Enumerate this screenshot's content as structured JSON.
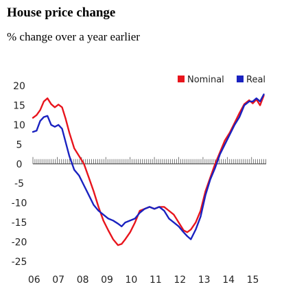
{
  "header": {
    "title": "House price change",
    "subtitle": "% change over a year earlier"
  },
  "chart_data": {
    "type": "line",
    "title": "House price change",
    "subtitle": "% change over a year earlier",
    "xlabel": "",
    "ylabel": "",
    "ylim": [
      -25,
      20
    ],
    "xlim": [
      2006,
      2015.6
    ],
    "yticks": [
      20,
      15,
      10,
      5,
      0,
      -5,
      -10,
      -15,
      -20,
      -25
    ],
    "ytick_labels": [
      "20",
      "15",
      "10",
      "5",
      "0",
      "-5",
      "-10",
      "-15",
      "-20",
      "-25"
    ],
    "xticks": [
      2006,
      2007,
      2008,
      2009,
      2010,
      2011,
      2012,
      2013,
      2014,
      2015
    ],
    "xtick_labels": [
      "06",
      "07",
      "08",
      "09",
      "10",
      "11",
      "12",
      "13",
      "14",
      "15"
    ],
    "legend_position": "top-right",
    "grid": false,
    "zero_line_minor_ticks": "monthly",
    "series": [
      {
        "name": "Nominal",
        "color": "#e8141c",
        "x": [
          2006.0,
          2006.15,
          2006.3,
          2006.45,
          2006.6,
          2006.75,
          2006.9,
          2007.05,
          2007.2,
          2007.35,
          2007.5,
          2007.7,
          2007.9,
          2008.1,
          2008.3,
          2008.5,
          2008.7,
          2008.9,
          2009.1,
          2009.3,
          2009.5,
          2009.65,
          2009.8,
          2010.0,
          2010.2,
          2010.4,
          2010.6,
          2010.8,
          2011.0,
          2011.2,
          2011.4,
          2011.6,
          2011.8,
          2012.0,
          2012.2,
          2012.35,
          2012.5,
          2012.7,
          2012.9,
          2013.1,
          2013.3,
          2013.5,
          2013.7,
          2013.9,
          2014.1,
          2014.3,
          2014.5,
          2014.7,
          2014.9,
          2015.05,
          2015.2,
          2015.35,
          2015.5
        ],
        "values": [
          11.8,
          12.5,
          13.8,
          16.0,
          16.8,
          15.3,
          14.5,
          15.2,
          14.5,
          11.5,
          8.0,
          4.0,
          2.0,
          0.0,
          -3.5,
          -7.0,
          -11.0,
          -14.5,
          -17.0,
          -19.3,
          -20.8,
          -20.5,
          -19.3,
          -17.5,
          -15.0,
          -12.0,
          -11.5,
          -11.0,
          -11.5,
          -11.0,
          -11.0,
          -12.0,
          -13.0,
          -15.0,
          -17.0,
          -17.5,
          -16.8,
          -15.0,
          -12.0,
          -7.0,
          -3.5,
          0.0,
          3.0,
          6.0,
          8.0,
          10.5,
          13.0,
          15.3,
          16.3,
          15.5,
          16.5,
          15.0,
          17.5
        ]
      },
      {
        "name": "Real",
        "color": "#1a22c0",
        "x": [
          2006.0,
          2006.15,
          2006.3,
          2006.45,
          2006.6,
          2006.75,
          2006.9,
          2007.05,
          2007.2,
          2007.35,
          2007.5,
          2007.7,
          2007.9,
          2008.1,
          2008.3,
          2008.5,
          2008.7,
          2008.9,
          2009.1,
          2009.3,
          2009.5,
          2009.65,
          2009.8,
          2010.0,
          2010.2,
          2010.4,
          2010.6,
          2010.8,
          2011.0,
          2011.2,
          2011.4,
          2011.6,
          2011.8,
          2012.0,
          2012.2,
          2012.35,
          2012.5,
          2012.7,
          2012.9,
          2013.1,
          2013.3,
          2013.5,
          2013.7,
          2013.9,
          2014.1,
          2014.3,
          2014.5,
          2014.7,
          2014.9,
          2015.05,
          2015.2,
          2015.35,
          2015.5
        ],
        "values": [
          8.2,
          8.5,
          11.0,
          12.0,
          12.3,
          10.0,
          9.5,
          10.0,
          9.0,
          5.5,
          2.0,
          -1.5,
          -3.0,
          -5.5,
          -8.0,
          -10.5,
          -12.0,
          -13.0,
          -14.0,
          -14.5,
          -15.3,
          -16.0,
          -15.0,
          -14.5,
          -14.0,
          -12.5,
          -11.5,
          -11.0,
          -11.5,
          -11.0,
          -12.0,
          -14.0,
          -15.0,
          -16.0,
          -17.5,
          -18.5,
          -19.3,
          -16.8,
          -13.5,
          -8.0,
          -4.0,
          -1.0,
          2.5,
          5.0,
          7.5,
          10.0,
          12.0,
          15.0,
          16.0,
          16.0,
          16.8,
          16.0,
          17.8
        ]
      }
    ]
  }
}
